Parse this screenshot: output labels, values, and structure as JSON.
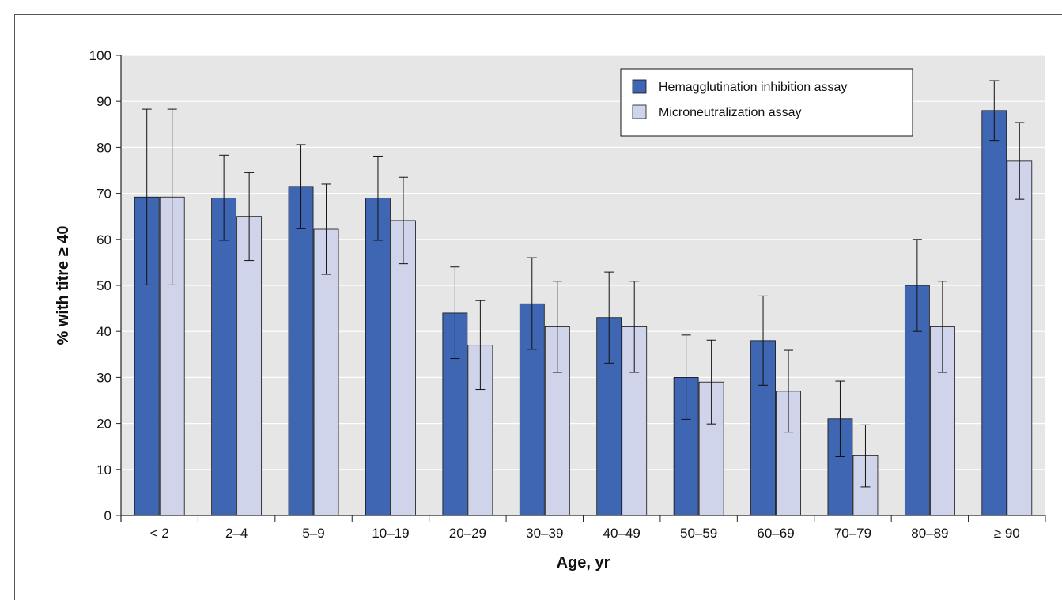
{
  "chart_data": {
    "type": "bar",
    "title": "",
    "xlabel": "Age, yr",
    "ylabel": "% with titre ≥ 40",
    "ylim": [
      0,
      100
    ],
    "yticks": [
      0,
      10,
      20,
      30,
      40,
      50,
      60,
      70,
      80,
      90,
      100
    ],
    "grid": true,
    "legend_position": "top-right",
    "categories": [
      "< 2",
      "2–4",
      "5–9",
      "10–19",
      "20–29",
      "30–39",
      "40–49",
      "50–59",
      "60–69",
      "70–79",
      "80–89",
      "≥ 90"
    ],
    "series": [
      {
        "name": "Hemagglutination inhibition assay",
        "color": "#3f66b2",
        "values": [
          69.2,
          69,
          71.5,
          69,
          44,
          46,
          43,
          30,
          38,
          21,
          50,
          88
        ],
        "error_low": [
          50.1,
          59.8,
          62.3,
          59.8,
          34.1,
          36.1,
          33.1,
          20.9,
          28.3,
          12.8,
          40.0,
          81.5
        ],
        "error_high": [
          88.3,
          78.3,
          80.6,
          78.1,
          54.0,
          56.0,
          52.9,
          39.2,
          47.7,
          29.2,
          60.0,
          94.5
        ]
      },
      {
        "name": "Microneutralization assay",
        "color": "#d0d4ea",
        "values": [
          69.2,
          65,
          62.2,
          64.1,
          37,
          41,
          41,
          29,
          27,
          13,
          41,
          77
        ],
        "error_low": [
          50.1,
          55.4,
          52.4,
          54.7,
          27.4,
          31.1,
          31.1,
          19.9,
          18.1,
          6.2,
          31.1,
          68.7
        ],
        "error_high": [
          88.3,
          74.5,
          72.0,
          73.5,
          46.7,
          50.9,
          50.9,
          38.1,
          35.9,
          19.7,
          50.9,
          85.4
        ]
      }
    ]
  }
}
